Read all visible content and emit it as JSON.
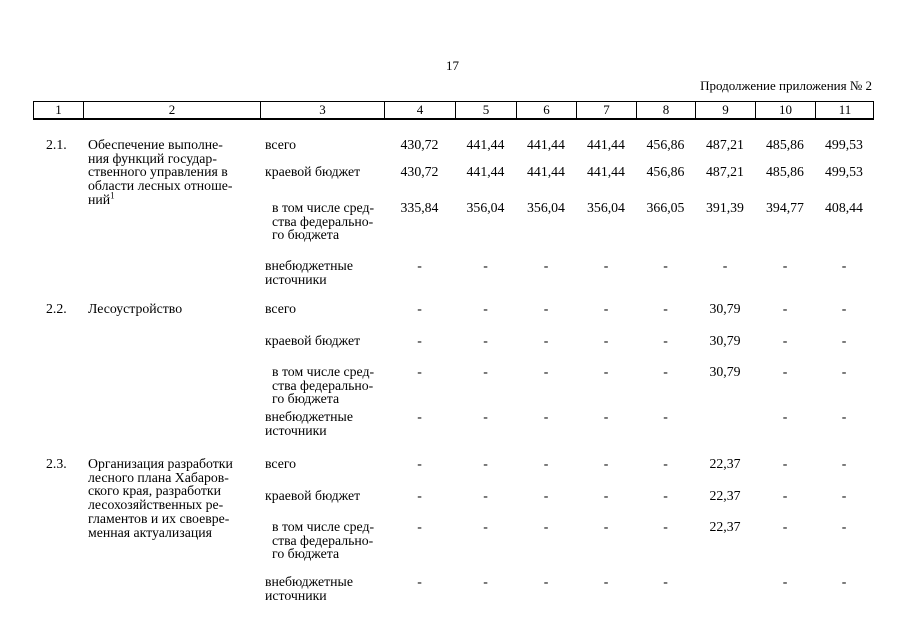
{
  "page": {
    "number": "17",
    "continuation_note": "Продолжение приложения № 2"
  },
  "table": {
    "header_columns": [
      "1",
      "2",
      "3",
      "4",
      "5",
      "6",
      "7",
      "8",
      "9",
      "10",
      "11"
    ],
    "rows": [
      {
        "num": "2.1.",
        "title_lines": [
          "Обеспечение выполне-",
          "ния функций государ-",
          "ственного управления в",
          "области лесных отноше-",
          "ний"
        ],
        "title_superscript": "1",
        "sub_rows": [
          {
            "label_lines": [
              "всего"
            ],
            "indent": false,
            "values": [
              "430,72",
              "441,44",
              "441,44",
              "441,44",
              "456,86",
              "487,21",
              "485,86",
              "499,53"
            ]
          },
          {
            "label_lines": [
              "краевой бюджет"
            ],
            "indent": false,
            "values": [
              "430,72",
              "441,44",
              "441,44",
              "441,44",
              "456,86",
              "487,21",
              "485,86",
              "499,53"
            ]
          },
          {
            "label_lines": [
              "в том числе сред-",
              "ства федерально-",
              "го бюджета"
            ],
            "indent": true,
            "values": [
              "335,84",
              "356,04",
              "356,04",
              "356,04",
              "366,05",
              "391,39",
              "394,77",
              "408,44"
            ]
          },
          {
            "label_lines": [
              "внебюджетные",
              "источники"
            ],
            "indent": false,
            "values": [
              "-",
              "-",
              "-",
              "-",
              "-",
              "-",
              "-",
              "-"
            ]
          }
        ]
      },
      {
        "num": "2.2.",
        "title_lines": [
          "Лесоустройство"
        ],
        "title_superscript": "",
        "sub_rows": [
          {
            "label_lines": [
              "всего"
            ],
            "indent": false,
            "values": [
              "-",
              "-",
              "-",
              "-",
              "-",
              "30,79",
              "-",
              "-"
            ]
          },
          {
            "label_lines": [
              "краевой бюджет"
            ],
            "indent": false,
            "values": [
              "-",
              "-",
              "-",
              "-",
              "-",
              "30,79",
              "-",
              "-"
            ]
          },
          {
            "label_lines": [
              "в том числе сред-",
              "ства федерально-",
              "го бюджета"
            ],
            "indent": true,
            "values": [
              "-",
              "-",
              "-",
              "-",
              "-",
              "30,79",
              "-",
              "-"
            ]
          },
          {
            "label_lines": [
              "внебюджетные",
              "источники"
            ],
            "indent": false,
            "values": [
              "-",
              "-",
              "-",
              "-",
              "-",
              "",
              "-",
              "-"
            ]
          }
        ]
      },
      {
        "num": "2.3.",
        "title_lines": [
          "Организация разработки",
          "лесного плана Хабаров-",
          "ского края, разработки",
          "лесохозяйственных ре-",
          "гламентов и их своевре-",
          "менная актуализация"
        ],
        "title_superscript": "",
        "sub_rows": [
          {
            "label_lines": [
              "всего"
            ],
            "indent": false,
            "values": [
              "-",
              "-",
              "-",
              "-",
              "-",
              "22,37",
              "-",
              "-"
            ]
          },
          {
            "label_lines": [
              "краевой бюджет"
            ],
            "indent": false,
            "values": [
              "-",
              "-",
              "-",
              "-",
              "-",
              "22,37",
              "-",
              "-"
            ]
          },
          {
            "label_lines": [
              "в том числе сред-",
              "ства федерально-",
              "го бюджета"
            ],
            "indent": true,
            "values": [
              "-",
              "-",
              "-",
              "-",
              "-",
              "22,37",
              "-",
              "-"
            ]
          },
          {
            "label_lines": [
              "внебюджетные",
              "источники"
            ],
            "indent": false,
            "values": [
              "-",
              "-",
              "-",
              "-",
              "-",
              "",
              "-",
              "-"
            ]
          }
        ]
      }
    ]
  }
}
